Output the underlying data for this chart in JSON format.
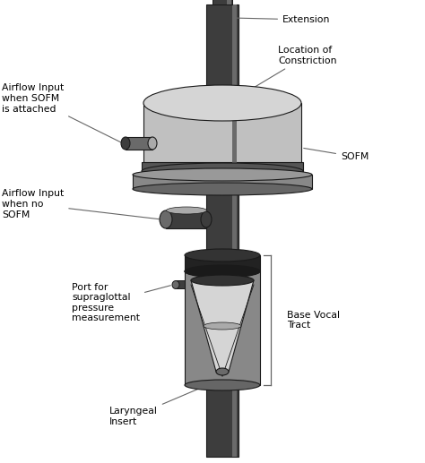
{
  "bg_color": "#ffffff",
  "dark_gray": "#3d3d3d",
  "mid_gray": "#6a6a6a",
  "light_gray": "#aaaaaa",
  "lighter_gray": "#c0c0c0",
  "very_light_gray": "#d5d5d5",
  "sofm_light": "#c8c8c8",
  "sofm_dark_rim": "#555555",
  "edge_color": "#1a1a1a",
  "line_color": "#666666",
  "text_color": "#000000",
  "labels": {
    "extension": "Extension",
    "location": "Location of\nConstriction",
    "sofm_label": "SOFM",
    "airflow_sofm": "Airflow Input\nwhen SOFM\nis attached",
    "airflow_no_sofm": "Airflow Input\nwhen no\nSOFM",
    "port": "Port for\nsupraglottal\npressure\nmeasurement",
    "base_vocal": "Base Vocal\nTract",
    "laryngeal": "Laryngeal\nInsert"
  }
}
